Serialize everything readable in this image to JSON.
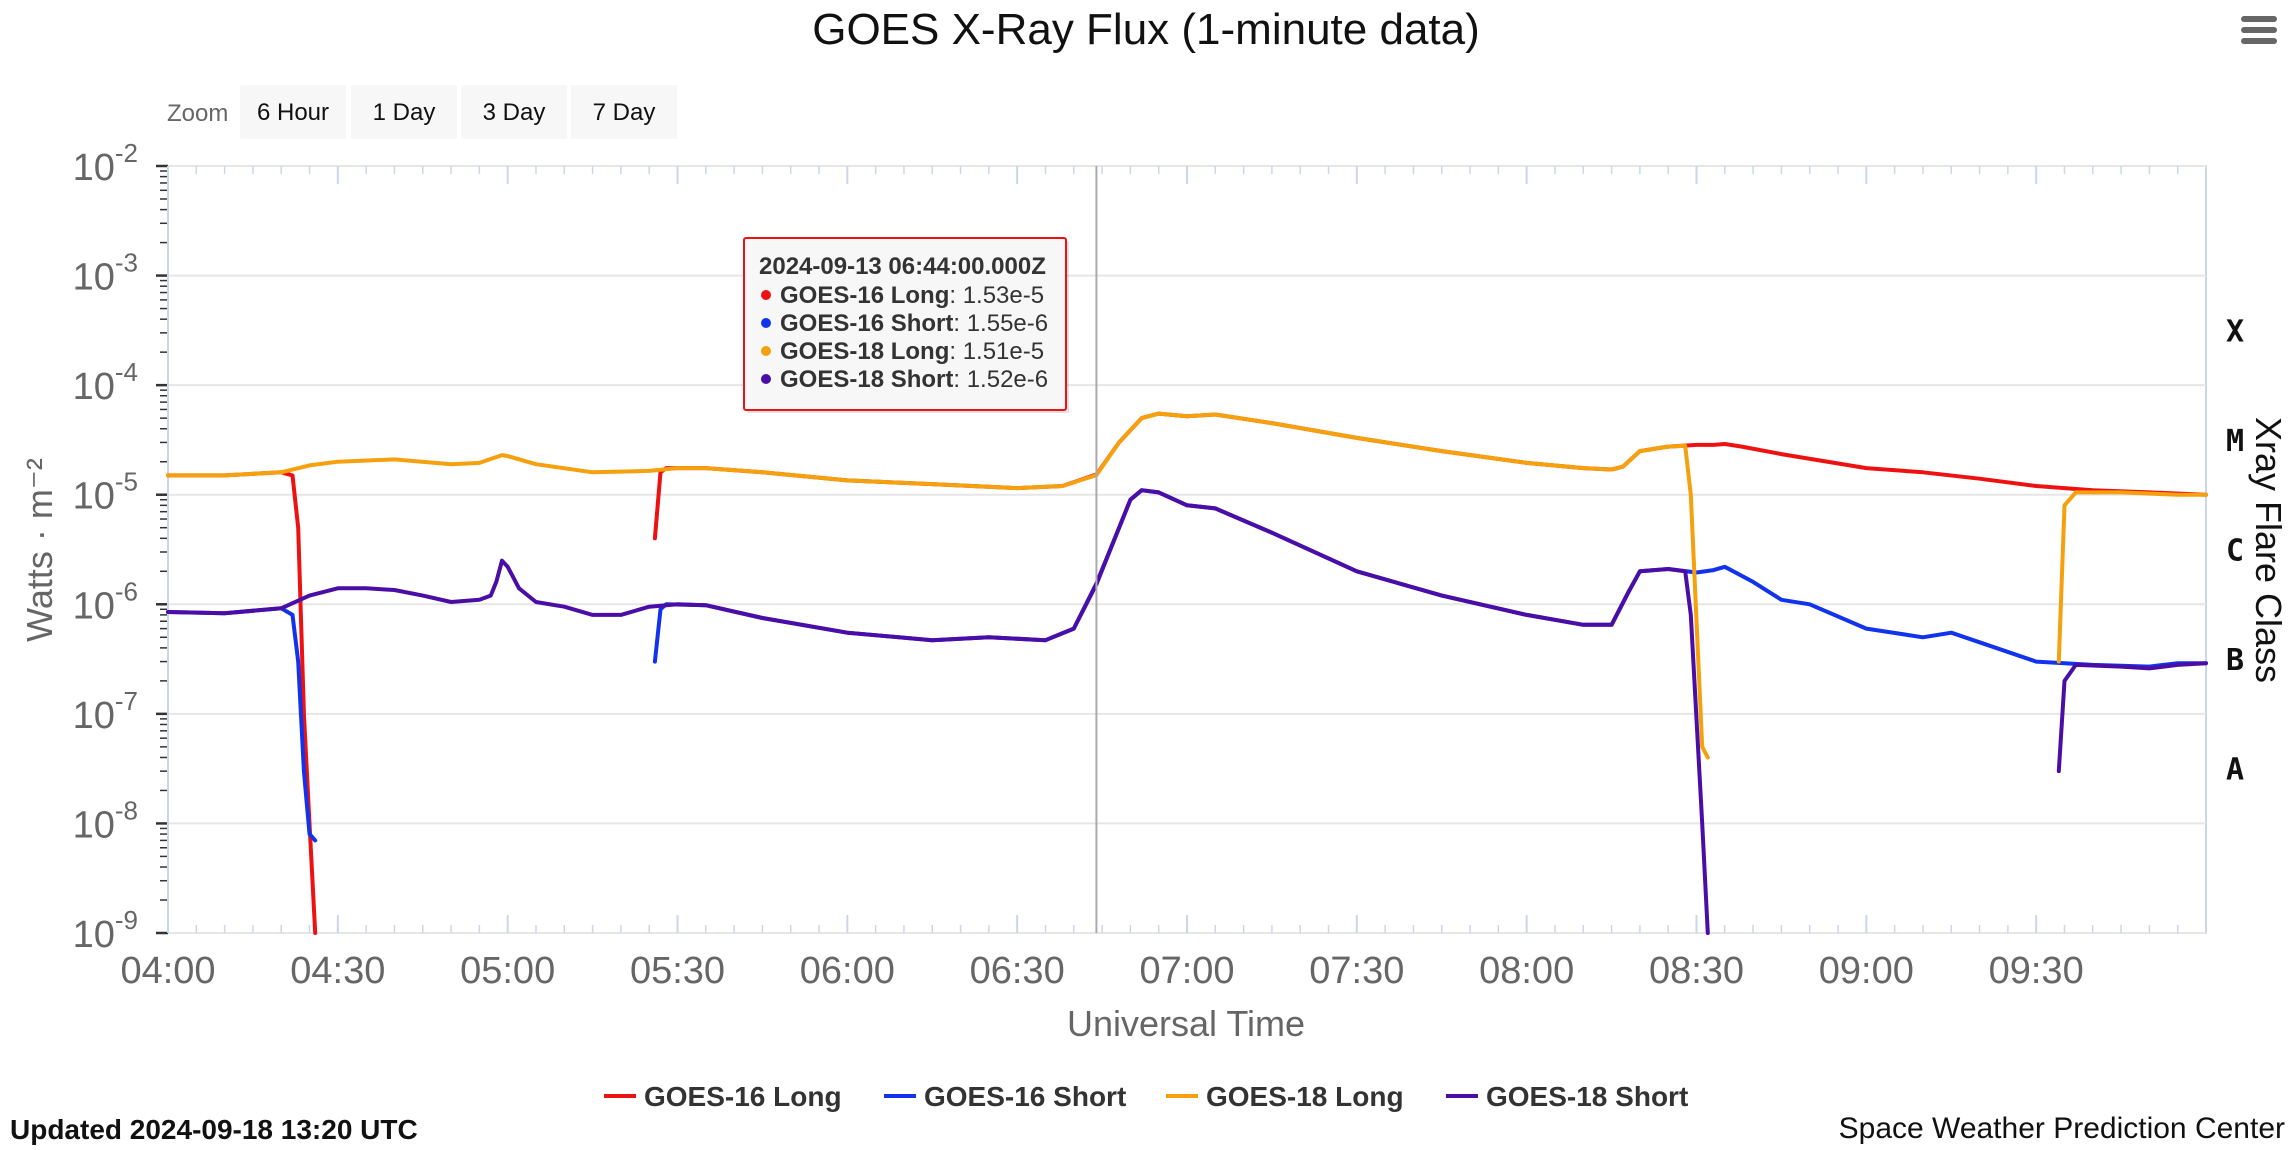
{
  "page": {
    "updated": "Updated 2024-09-18 13:20 UTC",
    "credit": "Space Weather Prediction Center"
  },
  "zoom": {
    "label": "Zoom",
    "buttons": [
      "6 Hour",
      "1 Day",
      "3 Day",
      "7 Day"
    ]
  },
  "icons": {
    "menu": "hamburger-menu-icon"
  },
  "colors": {
    "goes16_long": "#ee1111",
    "goes16_short": "#1133ee",
    "goes18_long": "#f5a00d",
    "goes18_short": "#4a0ea6"
  },
  "chart_data": {
    "type": "line",
    "title": "GOES X-Ray Flux (1-minute data)",
    "xlabel": "Universal Time",
    "ylabel": "Watts · m⁻²",
    "right_axis_label": "Xray Flare Class",
    "y_scale": "log",
    "x_range": [
      "04:00",
      "10:00"
    ],
    "ylim": [
      1e-09,
      0.01
    ],
    "y_ticks": [
      {
        "base": "10",
        "exp": "-9",
        "value": 1e-09
      },
      {
        "base": "10",
        "exp": "-8",
        "value": 1e-08
      },
      {
        "base": "10",
        "exp": "-7",
        "value": 1e-07
      },
      {
        "base": "10",
        "exp": "-6",
        "value": 1e-06
      },
      {
        "base": "10",
        "exp": "-5",
        "value": 1e-05
      },
      {
        "base": "10",
        "exp": "-4",
        "value": 0.0001
      },
      {
        "base": "10",
        "exp": "-3",
        "value": 0.001
      },
      {
        "base": "10",
        "exp": "-2",
        "value": 0.01
      }
    ],
    "x_ticks": [
      "04:00",
      "04:30",
      "05:00",
      "05:30",
      "06:00",
      "06:30",
      "07:00",
      "07:30",
      "08:00",
      "08:30",
      "09:00",
      "09:30"
    ],
    "flare_classes": [
      {
        "label": "A",
        "value": 3.16e-08
      },
      {
        "label": "B",
        "value": 3.16e-07
      },
      {
        "label": "C",
        "value": 3.16e-06
      },
      {
        "label": "M",
        "value": 3.16e-05
      },
      {
        "label": "X",
        "value": 0.000316
      }
    ],
    "grid": true,
    "legend_position": "bottom-center",
    "crosshair_time": "06:44",
    "tooltip": {
      "header": "2024-09-13 06:44:00.000Z",
      "rows": [
        {
          "name": "GOES-16 Long",
          "value": "1.53e-5",
          "color": "#ee1111"
        },
        {
          "name": "GOES-16 Short",
          "value": "1.55e-6",
          "color": "#1133ee"
        },
        {
          "name": "GOES-18 Long",
          "value": "1.51e-5",
          "color": "#f5a00d"
        },
        {
          "name": "GOES-18 Short",
          "value": "1.52e-6",
          "color": "#4a0ea6"
        }
      ]
    },
    "series": [
      {
        "name": "GOES-16 Long",
        "color": "#ee1111",
        "segments": [
          [
            [
              "04:00",
              1.5e-05
            ],
            [
              "04:10",
              1.5e-05
            ],
            [
              "04:20",
              1.6e-05
            ],
            [
              "04:22",
              1.5e-05
            ],
            [
              "04:23",
              5e-06
            ],
            [
              "04:24",
              1e-07
            ],
            [
              "04:25",
              1e-08
            ],
            [
              "04:26",
              1e-09
            ]
          ],
          [
            [
              "05:26",
              4e-06
            ],
            [
              "05:27",
              1.6e-05
            ],
            [
              "05:28",
              1.75e-05
            ],
            [
              "05:35",
              1.75e-05
            ],
            [
              "05:45",
              1.6e-05
            ],
            [
              "06:00",
              1.35e-05
            ],
            [
              "06:15",
              1.25e-05
            ],
            [
              "06:30",
              1.15e-05
            ],
            [
              "06:38",
              1.2e-05
            ],
            [
              "06:44",
              1.53e-05
            ],
            [
              "06:48",
              3e-05
            ],
            [
              "06:52",
              5e-05
            ],
            [
              "06:55",
              5.5e-05
            ],
            [
              "07:00",
              5.2e-05
            ],
            [
              "07:05",
              5.4e-05
            ],
            [
              "07:15",
              4.5e-05
            ],
            [
              "07:30",
              3.3e-05
            ],
            [
              "07:45",
              2.5e-05
            ],
            [
              "08:00",
              1.95e-05
            ],
            [
              "08:10",
              1.75e-05
            ],
            [
              "08:15",
              1.7e-05
            ],
            [
              "08:17",
              1.8e-05
            ],
            [
              "08:20",
              2.5e-05
            ],
            [
              "08:25",
              2.75e-05
            ],
            [
              "08:30",
              2.85e-05
            ],
            [
              "08:33",
              2.85e-05
            ],
            [
              "08:35",
              2.9e-05
            ],
            [
              "08:38",
              2.75e-05
            ],
            [
              "08:45",
              2.35e-05
            ],
            [
              "09:00",
              1.75e-05
            ],
            [
              "09:10",
              1.6e-05
            ],
            [
              "09:20",
              1.4e-05
            ],
            [
              "09:30",
              1.2e-05
            ],
            [
              "09:40",
              1.1e-05
            ],
            [
              "09:50",
              1.05e-05
            ],
            [
              "10:00",
              1e-05
            ]
          ]
        ]
      },
      {
        "name": "GOES-16 Short",
        "color": "#1133ee",
        "segments": [
          [
            [
              "04:00",
              8.5e-07
            ],
            [
              "04:10",
              8.3e-07
            ],
            [
              "04:20",
              9.2e-07
            ],
            [
              "04:22",
              8e-07
            ],
            [
              "04:23",
              3e-07
            ],
            [
              "04:24",
              3e-08
            ],
            [
              "04:25",
              8e-09
            ],
            [
              "04:26",
              7e-09
            ]
          ],
          [
            [
              "05:26",
              3e-07
            ],
            [
              "05:27",
              9e-07
            ],
            [
              "05:28",
              1e-06
            ],
            [
              "05:35",
              9.8e-07
            ],
            [
              "05:45",
              7.5e-07
            ],
            [
              "06:00",
              5.5e-07
            ],
            [
              "06:15",
              4.7e-07
            ],
            [
              "06:25",
              5e-07
            ],
            [
              "06:35",
              4.7e-07
            ],
            [
              "06:40",
              6e-07
            ],
            [
              "06:44",
              1.55e-06
            ],
            [
              "06:48",
              5e-06
            ],
            [
              "06:50",
              9e-06
            ],
            [
              "06:52",
              1.1e-05
            ],
            [
              "06:55",
              1.05e-05
            ],
            [
              "07:00",
              8e-06
            ],
            [
              "07:05",
              7.5e-06
            ],
            [
              "07:15",
              4.5e-06
            ],
            [
              "07:30",
              2e-06
            ],
            [
              "07:45",
              1.2e-06
            ],
            [
              "08:00",
              8e-07
            ],
            [
              "08:10",
              6.5e-07
            ],
            [
              "08:15",
              6.5e-07
            ],
            [
              "08:18",
              1.3e-06
            ],
            [
              "08:20",
              2e-06
            ],
            [
              "08:25",
              2.1e-06
            ],
            [
              "08:30",
              1.95e-06
            ],
            [
              "08:33",
              2.05e-06
            ],
            [
              "08:35",
              2.2e-06
            ],
            [
              "08:40",
              1.6e-06
            ],
            [
              "08:45",
              1.1e-06
            ],
            [
              "08:50",
              1e-06
            ],
            [
              "09:00",
              6e-07
            ],
            [
              "09:10",
              5e-07
            ],
            [
              "09:15",
              5.5e-07
            ],
            [
              "09:20",
              4.5e-07
            ],
            [
              "09:30",
              3e-07
            ],
            [
              "09:40",
              2.8e-07
            ],
            [
              "09:50",
              2.7e-07
            ],
            [
              "09:55",
              2.9e-07
            ],
            [
              "10:00",
              2.9e-07
            ]
          ]
        ]
      },
      {
        "name": "GOES-18 Long",
        "color": "#f5a00d",
        "segments": [
          [
            [
              "04:00",
              1.5e-05
            ],
            [
              "04:10",
              1.5e-05
            ],
            [
              "04:20",
              1.6e-05
            ],
            [
              "04:25",
              1.85e-05
            ],
            [
              "04:30",
              2e-05
            ],
            [
              "04:40",
              2.1e-05
            ],
            [
              "04:50",
              1.9e-05
            ],
            [
              "04:55",
              1.95e-05
            ],
            [
              "04:59",
              2.3e-05
            ],
            [
              "05:00",
              2.25e-05
            ],
            [
              "05:05",
              1.9e-05
            ],
            [
              "05:15",
              1.6e-05
            ],
            [
              "05:25",
              1.65e-05
            ],
            [
              "05:30",
              1.75e-05
            ],
            [
              "05:35",
              1.75e-05
            ],
            [
              "05:45",
              1.6e-05
            ],
            [
              "06:00",
              1.35e-05
            ],
            [
              "06:15",
              1.25e-05
            ],
            [
              "06:30",
              1.15e-05
            ],
            [
              "06:38",
              1.2e-05
            ],
            [
              "06:44",
              1.51e-05
            ],
            [
              "06:48",
              3e-05
            ],
            [
              "06:52",
              5e-05
            ],
            [
              "06:55",
              5.5e-05
            ],
            [
              "07:00",
              5.2e-05
            ],
            [
              "07:05",
              5.4e-05
            ],
            [
              "07:15",
              4.5e-05
            ],
            [
              "07:30",
              3.3e-05
            ],
            [
              "07:45",
              2.5e-05
            ],
            [
              "08:00",
              1.95e-05
            ],
            [
              "08:10",
              1.75e-05
            ],
            [
              "08:15",
              1.7e-05
            ],
            [
              "08:17",
              1.8e-05
            ],
            [
              "08:20",
              2.5e-05
            ],
            [
              "08:25",
              2.75e-05
            ],
            [
              "08:28",
              2.8e-05
            ],
            [
              "08:29",
              1e-05
            ],
            [
              "08:31",
              5e-08
            ],
            [
              "08:32",
              4e-08
            ]
          ],
          [
            [
              "09:34",
              3e-07
            ],
            [
              "09:35",
              8e-06
            ],
            [
              "09:37",
              1.05e-05
            ],
            [
              "09:45",
              1.05e-05
            ],
            [
              "09:55",
              1e-05
            ],
            [
              "10:00",
              1e-05
            ]
          ]
        ]
      },
      {
        "name": "GOES-18 Short",
        "color": "#4a0ea6",
        "segments": [
          [
            [
              "04:00",
              8.5e-07
            ],
            [
              "04:10",
              8.3e-07
            ],
            [
              "04:20",
              9.2e-07
            ],
            [
              "04:25",
              1.2e-06
            ],
            [
              "04:30",
              1.4e-06
            ],
            [
              "04:35",
              1.4e-06
            ],
            [
              "04:40",
              1.35e-06
            ],
            [
              "04:45",
              1.2e-06
            ],
            [
              "04:50",
              1.05e-06
            ],
            [
              "04:55",
              1.1e-06
            ],
            [
              "04:57",
              1.2e-06
            ],
            [
              "04:58",
              1.6e-06
            ],
            [
              "04:59",
              2.5e-06
            ],
            [
              "05:00",
              2.2e-06
            ],
            [
              "05:02",
              1.4e-06
            ],
            [
              "05:05",
              1.05e-06
            ],
            [
              "05:10",
              9.5e-07
            ],
            [
              "05:15",
              8e-07
            ],
            [
              "05:20",
              8e-07
            ],
            [
              "05:25",
              9.5e-07
            ],
            [
              "05:30",
              1e-06
            ],
            [
              "05:35",
              9.8e-07
            ],
            [
              "05:45",
              7.5e-07
            ],
            [
              "06:00",
              5.5e-07
            ],
            [
              "06:15",
              4.7e-07
            ],
            [
              "06:25",
              5e-07
            ],
            [
              "06:35",
              4.7e-07
            ],
            [
              "06:40",
              6e-07
            ],
            [
              "06:44",
              1.52e-06
            ],
            [
              "06:48",
              5e-06
            ],
            [
              "06:50",
              9e-06
            ],
            [
              "06:52",
              1.1e-05
            ],
            [
              "06:55",
              1.05e-05
            ],
            [
              "07:00",
              8e-06
            ],
            [
              "07:05",
              7.5e-06
            ],
            [
              "07:15",
              4.5e-06
            ],
            [
              "07:30",
              2e-06
            ],
            [
              "07:45",
              1.2e-06
            ],
            [
              "08:00",
              8e-07
            ],
            [
              "08:10",
              6.5e-07
            ],
            [
              "08:15",
              6.5e-07
            ],
            [
              "08:18",
              1.3e-06
            ],
            [
              "08:20",
              2e-06
            ],
            [
              "08:25",
              2.1e-06
            ],
            [
              "08:28",
              2e-06
            ],
            [
              "08:29",
              8e-07
            ],
            [
              "08:31",
              1e-08
            ],
            [
              "08:32",
              1e-09
            ]
          ],
          [
            [
              "09:34",
              3e-08
            ],
            [
              "09:35",
              2e-07
            ],
            [
              "09:37",
              2.8e-07
            ],
            [
              "09:45",
              2.7e-07
            ],
            [
              "09:50",
              2.6e-07
            ],
            [
              "09:55",
              2.8e-07
            ],
            [
              "10:00",
              2.9e-07
            ]
          ]
        ]
      }
    ]
  }
}
